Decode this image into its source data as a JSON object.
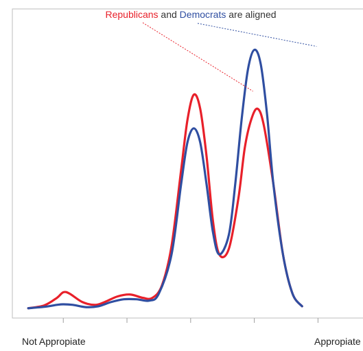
{
  "chart_data": {
    "type": "line",
    "title": "",
    "xlabel": "",
    "ylabel": "",
    "x_tick_labels": [
      {
        "x": 1,
        "label": "Not Appropiate"
      },
      {
        "x": 5,
        "label": "Appropiate"
      }
    ],
    "xlim": [
      0.2,
      5.75
    ],
    "ylim": [
      0,
      1.0
    ],
    "x_ticks": [
      1,
      2,
      3,
      4,
      5
    ],
    "grid": false,
    "annotation": {
      "parts": [
        {
          "text": "Republicans",
          "series": "Republicans"
        },
        {
          "text": " and ",
          "series": null
        },
        {
          "text": "Democrats",
          "series": "Democrats"
        },
        {
          "text": " are aligned",
          "series": null
        }
      ],
      "targets": [
        {
          "series": "Republicans",
          "x": 4.0,
          "y": 0.77
        },
        {
          "series": "Democrats",
          "x": 5.0,
          "y": 0.93
        }
      ]
    },
    "series": [
      {
        "name": "Republicans",
        "color": "#e8202a",
        "points": [
          [
            0.45,
            0.008
          ],
          [
            0.7,
            0.018
          ],
          [
            0.9,
            0.045
          ],
          [
            1.0,
            0.065
          ],
          [
            1.1,
            0.06
          ],
          [
            1.3,
            0.03
          ],
          [
            1.5,
            0.02
          ],
          [
            1.65,
            0.03
          ],
          [
            1.85,
            0.05
          ],
          [
            2.05,
            0.057
          ],
          [
            2.25,
            0.045
          ],
          [
            2.4,
            0.045
          ],
          [
            2.55,
            0.09
          ],
          [
            2.7,
            0.23
          ],
          [
            2.85,
            0.5
          ],
          [
            2.95,
            0.68
          ],
          [
            3.05,
            0.77
          ],
          [
            3.15,
            0.72
          ],
          [
            3.25,
            0.55
          ],
          [
            3.35,
            0.32
          ],
          [
            3.45,
            0.2
          ],
          [
            3.6,
            0.22
          ],
          [
            3.75,
            0.4
          ],
          [
            3.85,
            0.58
          ],
          [
            3.95,
            0.68
          ],
          [
            4.05,
            0.72
          ],
          [
            4.15,
            0.66
          ],
          [
            4.3,
            0.45
          ],
          [
            4.45,
            0.2
          ],
          [
            4.6,
            0.06
          ],
          [
            4.75,
            0.015
          ]
        ]
      },
      {
        "name": "Democrats",
        "color": "#2f4ea1",
        "points": [
          [
            0.45,
            0.008
          ],
          [
            0.7,
            0.013
          ],
          [
            0.9,
            0.02
          ],
          [
            1.0,
            0.022
          ],
          [
            1.15,
            0.02
          ],
          [
            1.35,
            0.012
          ],
          [
            1.55,
            0.015
          ],
          [
            1.75,
            0.03
          ],
          [
            1.95,
            0.04
          ],
          [
            2.15,
            0.04
          ],
          [
            2.35,
            0.035
          ],
          [
            2.5,
            0.06
          ],
          [
            2.7,
            0.2
          ],
          [
            2.85,
            0.45
          ],
          [
            2.95,
            0.6
          ],
          [
            3.05,
            0.65
          ],
          [
            3.15,
            0.6
          ],
          [
            3.25,
            0.45
          ],
          [
            3.35,
            0.28
          ],
          [
            3.45,
            0.2
          ],
          [
            3.6,
            0.27
          ],
          [
            3.7,
            0.45
          ],
          [
            3.8,
            0.68
          ],
          [
            3.9,
            0.86
          ],
          [
            4.0,
            0.93
          ],
          [
            4.1,
            0.88
          ],
          [
            4.2,
            0.7
          ],
          [
            4.3,
            0.45
          ],
          [
            4.45,
            0.2
          ],
          [
            4.6,
            0.06
          ],
          [
            4.75,
            0.015
          ]
        ]
      }
    ]
  }
}
